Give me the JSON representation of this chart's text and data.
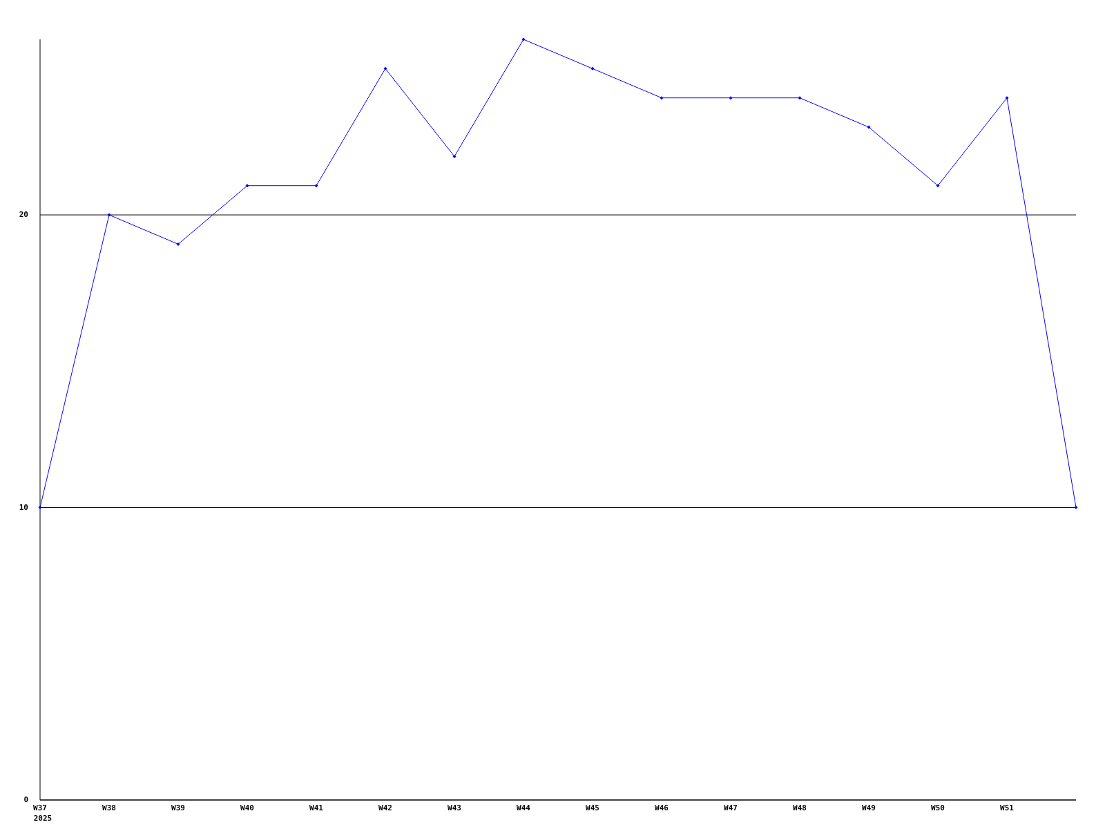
{
  "chart_data": {
    "type": "line",
    "categories": [
      "W37",
      "W38",
      "W39",
      "W40",
      "W41",
      "W42",
      "W43",
      "W44",
      "W45",
      "W46",
      "W47",
      "W48",
      "W49",
      "W50",
      "W51",
      null
    ],
    "series": [
      {
        "color": "#0000ff",
        "values": [
          10,
          20,
          19,
          21,
          21,
          25,
          22,
          26,
          25,
          24,
          24,
          24,
          23,
          21,
          24,
          10
        ]
      }
    ],
    "ylim": [
      0,
      26
    ],
    "yticks": [
      0,
      10,
      20
    ],
    "grid": "y",
    "marker": "diamond",
    "line_style": "solid",
    "annotations": [
      "2025"
    ]
  }
}
